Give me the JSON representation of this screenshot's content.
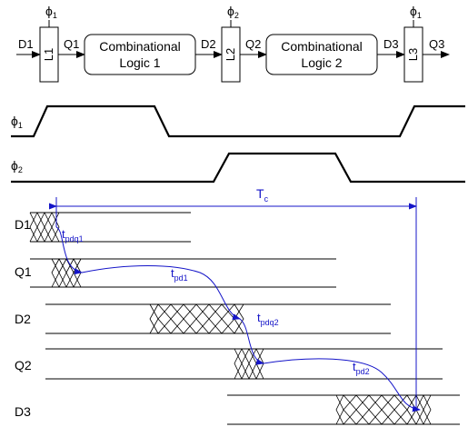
{
  "top_schematic": {
    "latches": [
      {
        "label": "L1",
        "clock": "ϕ",
        "clock_sub": "1",
        "d_in": "D1",
        "q_out": "Q1"
      },
      {
        "label": "L2",
        "clock": "ϕ",
        "clock_sub": "2",
        "d_in": "D2",
        "q_out": "Q2"
      },
      {
        "label": "L3",
        "clock": "ϕ",
        "clock_sub": "1",
        "d_in": "D3",
        "q_out": "Q3"
      }
    ],
    "logic_blocks": [
      {
        "line1": "Combinational",
        "line2": "Logic 1"
      },
      {
        "line1": "Combinational",
        "line2": "Logic 2"
      }
    ]
  },
  "clocks": [
    {
      "name": "ϕ",
      "sub": "1"
    },
    {
      "name": "ϕ",
      "sub": "2"
    }
  ],
  "signals": [
    "D1",
    "Q1",
    "D2",
    "Q2",
    "D3"
  ],
  "period": {
    "main": "T",
    "sub": "c"
  },
  "delays": [
    {
      "main": "t",
      "sub": "pdq1"
    },
    {
      "main": "t",
      "sub": "pd1"
    },
    {
      "main": "t",
      "sub": "pdq2"
    },
    {
      "main": "t",
      "sub": "pd2"
    }
  ],
  "colors": {
    "ink": "#000000",
    "annotation": "#1414c8"
  }
}
